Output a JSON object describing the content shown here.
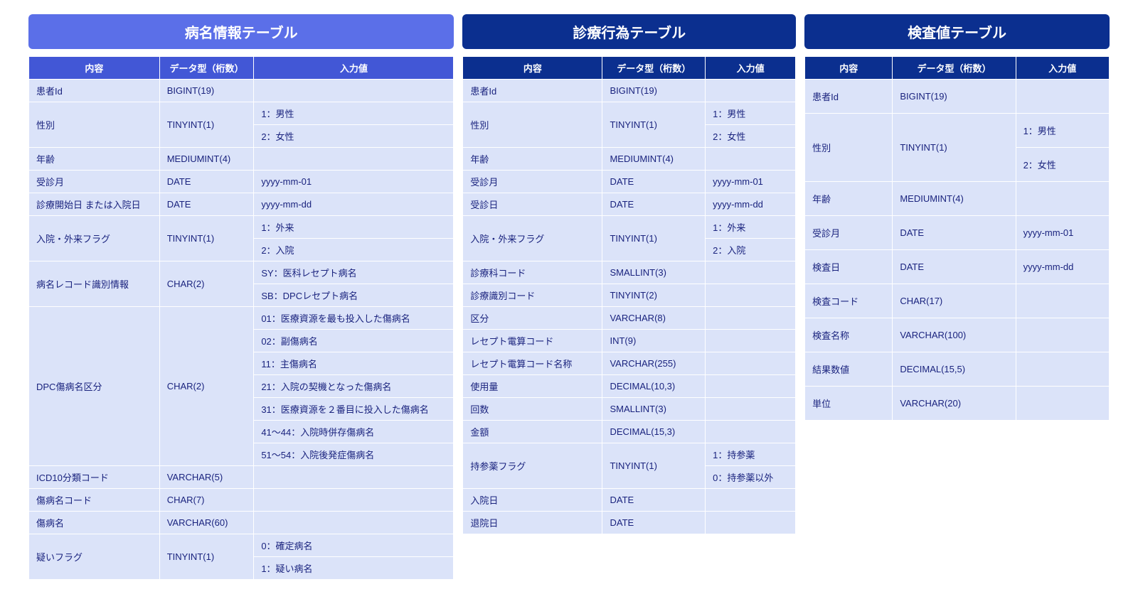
{
  "colors": {
    "title1_bg": "#5b6fe8",
    "title2_bg": "#0b2f8f",
    "title3_bg": "#0b2f8f",
    "header1_bg": "#4257d6",
    "header2_bg": "#0b2f8f",
    "header3_bg": "#0b2f8f",
    "cell_bg": "#dbe3f9",
    "text": "#1a237e"
  },
  "t1": {
    "title": "病名情報テーブル",
    "h1": "内容",
    "h2": "データ型（桁数）",
    "h3": "入力値",
    "r": [
      {
        "c": "患者Id",
        "d": "BIGINT(19)",
        "v": [
          ""
        ]
      },
      {
        "c": "性別",
        "d": "TINYINT(1)",
        "v": [
          "1：男性",
          "2：女性"
        ]
      },
      {
        "c": "年齢",
        "d": "MEDIUMINT(4)",
        "v": [
          ""
        ]
      },
      {
        "c": "受診月",
        "d": "DATE",
        "v": [
          "yyyy-mm-01"
        ]
      },
      {
        "c": "診療開始日 または入院日",
        "d": "DATE",
        "v": [
          "yyyy-mm-dd"
        ]
      },
      {
        "c": "入院・外来フラグ",
        "d": "TINYINT(1)",
        "v": [
          "1：外来",
          "2：入院"
        ]
      },
      {
        "c": "病名レコード識別情報",
        "d": "CHAR(2)",
        "v": [
          "SY：医科レセプト病名",
          "SB：DPCレセプト病名"
        ]
      },
      {
        "c": "DPC傷病名区分",
        "d": "CHAR(2)",
        "v": [
          "01：医療資源を最も投入した傷病名",
          "02：副傷病名",
          "11：主傷病名",
          "21：入院の契機となった傷病名",
          "31：医療資源を２番目に投入した傷病名",
          "41〜44：入院時併存傷病名",
          "51〜54：入院後発症傷病名"
        ]
      },
      {
        "c": "ICD10分類コード",
        "d": "VARCHAR(5)",
        "v": [
          ""
        ]
      },
      {
        "c": "傷病名コード",
        "d": "CHAR(7)",
        "v": [
          ""
        ]
      },
      {
        "c": "傷病名",
        "d": "VARCHAR(60)",
        "v": [
          ""
        ]
      },
      {
        "c": "疑いフラグ",
        "d": "TINYINT(1)",
        "v": [
          "0：確定病名",
          "1：疑い病名"
        ]
      }
    ]
  },
  "t2": {
    "title": "診療行為テーブル",
    "h1": "内容",
    "h2": "データ型（桁数）",
    "h3": "入力値",
    "r": [
      {
        "c": "患者Id",
        "d": "BIGINT(19)",
        "v": [
          ""
        ]
      },
      {
        "c": "性別",
        "d": "TINYINT(1)",
        "v": [
          "1：男性",
          "2：女性"
        ]
      },
      {
        "c": "年齢",
        "d": "MEDIUMINT(4)",
        "v": [
          ""
        ]
      },
      {
        "c": "受診月",
        "d": "DATE",
        "v": [
          "yyyy-mm-01"
        ]
      },
      {
        "c": "受診日",
        "d": "DATE",
        "v": [
          "yyyy-mm-dd"
        ]
      },
      {
        "c": "入院・外来フラグ",
        "d": "TINYINT(1)",
        "v": [
          "1：外来",
          "2：入院"
        ]
      },
      {
        "c": "診療科コード",
        "d": "SMALLINT(3)",
        "v": [
          ""
        ]
      },
      {
        "c": "診療識別コード",
        "d": "TINYINT(2)",
        "v": [
          ""
        ]
      },
      {
        "c": "区分",
        "d": "VARCHAR(8)",
        "v": [
          ""
        ]
      },
      {
        "c": "レセプト電算コード",
        "d": "INT(9)",
        "v": [
          ""
        ]
      },
      {
        "c": "レセプト電算コード名称",
        "d": "VARCHAR(255)",
        "v": [
          ""
        ]
      },
      {
        "c": "使用量",
        "d": "DECIMAL(10,3)",
        "v": [
          ""
        ]
      },
      {
        "c": "回数",
        "d": "SMALLINT(3)",
        "v": [
          ""
        ]
      },
      {
        "c": "金額",
        "d": "DECIMAL(15,3)",
        "v": [
          ""
        ]
      },
      {
        "c": "持参薬フラグ",
        "d": "TINYINT(1)",
        "v": [
          "1：持参薬",
          "0：持参薬以外"
        ]
      },
      {
        "c": "入院日",
        "d": "DATE",
        "v": [
          ""
        ]
      },
      {
        "c": "退院日",
        "d": "DATE",
        "v": [
          ""
        ]
      }
    ]
  },
  "t3": {
    "title": "検査値テーブル",
    "h1": "内容",
    "h2": "データ型（桁数）",
    "h3": "入力値",
    "r": [
      {
        "c": "患者Id",
        "d": "BIGINT(19)",
        "v": [
          ""
        ]
      },
      {
        "c": "性別",
        "d": "TINYINT(1)",
        "v": [
          "1：男性",
          "2：女性"
        ]
      },
      {
        "c": "年齢",
        "d": "MEDIUMINT(4)",
        "v": [
          ""
        ]
      },
      {
        "c": "受診月",
        "d": "DATE",
        "v": [
          "yyyy-mm-01"
        ]
      },
      {
        "c": "検査日",
        "d": "DATE",
        "v": [
          "yyyy-mm-dd"
        ]
      },
      {
        "c": "検査コード",
        "d": "CHAR(17)",
        "v": [
          ""
        ]
      },
      {
        "c": "検査名称",
        "d": "VARCHAR(100)",
        "v": [
          ""
        ]
      },
      {
        "c": "結果数値",
        "d": "DECIMAL(15,5)",
        "v": [
          ""
        ]
      },
      {
        "c": "単位",
        "d": "VARCHAR(20)",
        "v": [
          ""
        ]
      }
    ]
  },
  "widths": {
    "t1": "600px",
    "t2": "470px",
    "t3": "430px"
  },
  "t3_row_pad": "14px"
}
